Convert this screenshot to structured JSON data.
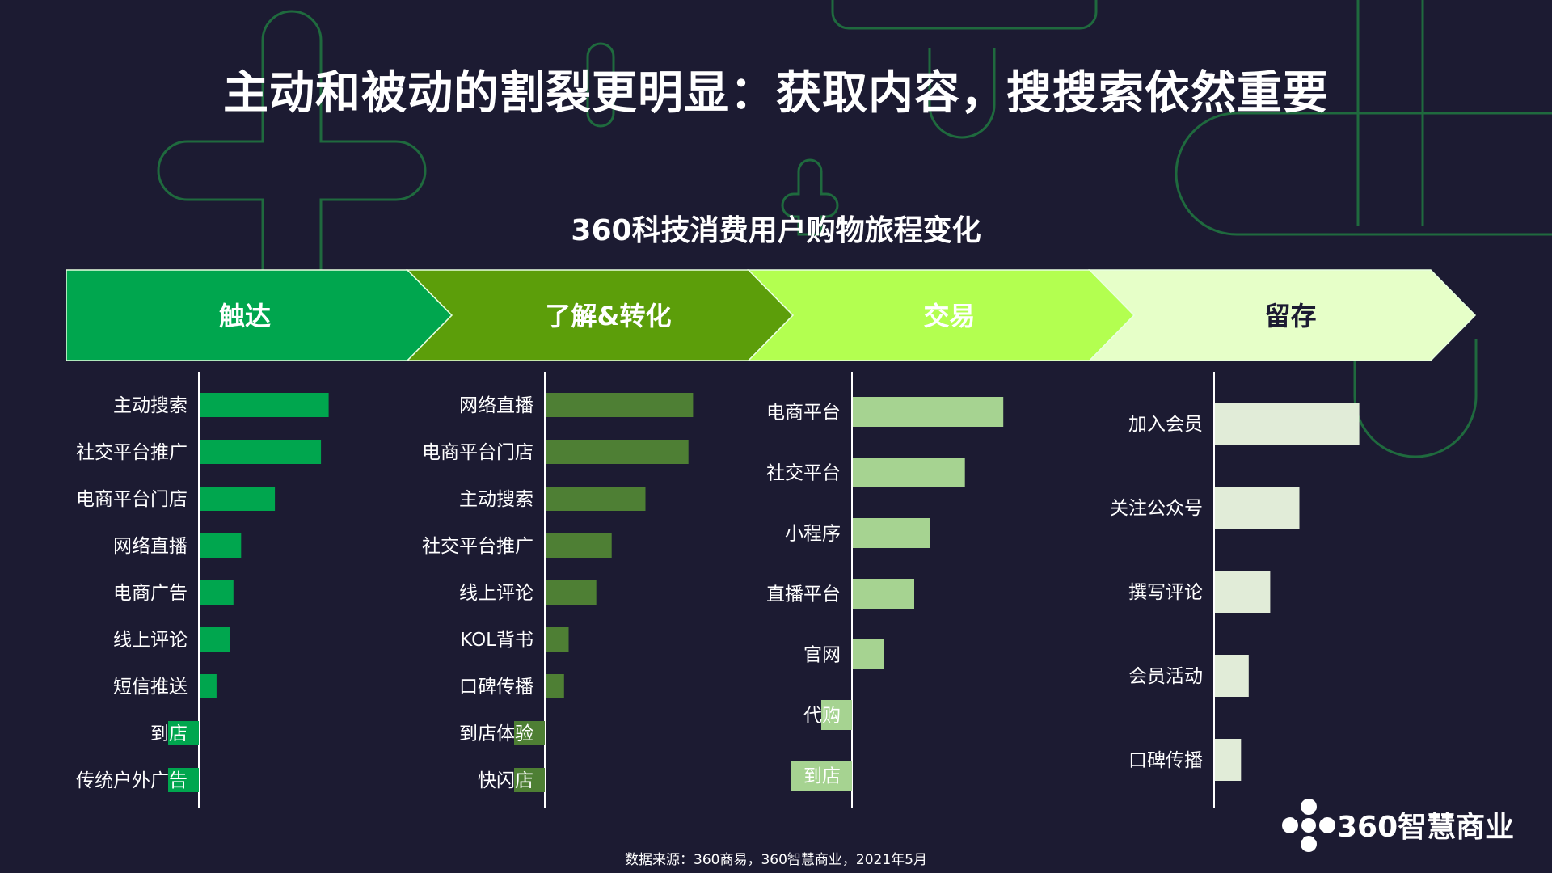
{
  "slide_title": "主动和被动的割裂更明显：获取内容，搜搜索依然重要",
  "source_note": "数据来源：360商易，360智慧商业，2021年5月",
  "logo_text": "360智慧商业",
  "colors": {
    "background": "#1c1b32",
    "decor_line": "#1f6a3e",
    "stage_1": "#00a64e",
    "stage_2": "#5c9e0a",
    "stage_3": "#b3ff50",
    "stage_4": "#e6ffc8",
    "bar_1": "#00a64e",
    "bar_2": "#4e7f34",
    "bar_3": "#a6d391",
    "bar_4": "#e1ecd8"
  },
  "chart_data": {
    "type": "bar",
    "title": "360科技消费用户购物旅程变化",
    "orientation": "horizontal",
    "stages": [
      "触达",
      "了解&转化",
      "交易",
      "留存"
    ],
    "panels": [
      {
        "stage": "触达",
        "categories": [
          "主动搜索",
          "社交平台推广",
          "电商平台门店",
          "网络直播",
          "电商广告",
          "线上评论",
          "短信推送",
          "到店",
          "传统户外广告"
        ],
        "values": [
          84,
          79,
          49,
          27,
          22,
          20,
          11,
          -20,
          -20
        ]
      },
      {
        "stage": "了解&转化",
        "categories": [
          "网络直播",
          "电商平台门店",
          "主动搜索",
          "社交平台推广",
          "线上评论",
          "KOL背书",
          "口碑传播",
          "到店体验",
          "快闪店"
        ],
        "values": [
          96,
          93,
          65,
          43,
          33,
          15,
          12,
          -20,
          -20
        ]
      },
      {
        "stage": "交易",
        "categories": [
          "电商平台",
          "社交平台",
          "小程序",
          "直播平台",
          "官网",
          "代购",
          "到店"
        ],
        "values": [
          98,
          73,
          50,
          40,
          20,
          -20,
          -40
        ]
      },
      {
        "stage": "留存",
        "categories": [
          "加入会员",
          "关注公众号",
          "撰写评论",
          "会员活动",
          "口碑传播"
        ],
        "values": [
          94,
          55,
          36,
          22,
          17
        ]
      }
    ]
  }
}
